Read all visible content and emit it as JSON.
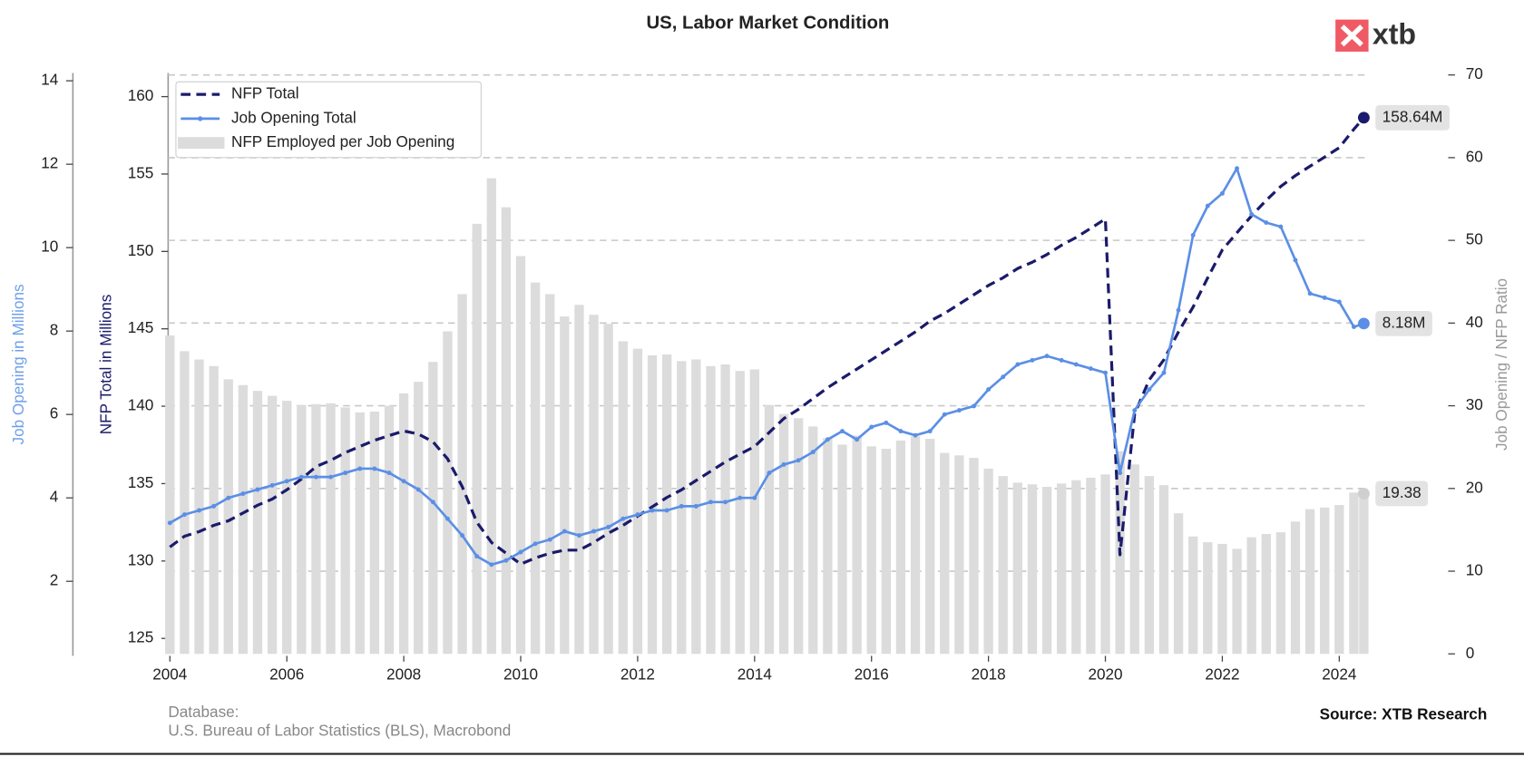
{
  "chart_data": {
    "type": "combo",
    "title": "US, Labor Market Condition",
    "logo": "xtb",
    "ylabel": "NFP Total in Millions",
    "y2label": "Job Opening / NFP Ratio",
    "y3label": "Job Opening in Millions",
    "footer": {
      "database": "Database:",
      "sources": "U.S. Bureau of Labor Statistics (BLS), Macrobond",
      "credit": "Source: XTB Research"
    },
    "xlim": [
      2003.97,
      2024.5
    ],
    "xticks": [
      2004,
      2006,
      2008,
      2010,
      2012,
      2014,
      2016,
      2018,
      2020,
      2022,
      2024
    ],
    "ylim": [
      124.0,
      161.4
    ],
    "yticks": [
      125,
      130,
      135,
      140,
      145,
      150,
      155,
      160
    ],
    "y2lim": [
      0,
      70
    ],
    "y2ticks": [
      0,
      10,
      20,
      30,
      40,
      50,
      60,
      70
    ],
    "y3lim": [
      0.26,
      14.14
    ],
    "y3ticks": [
      2,
      4,
      6,
      8,
      10,
      12,
      14
    ],
    "grid": true,
    "legend": "upper left",
    "x": [
      2004,
      2004.25,
      2004.5,
      2004.75,
      2005,
      2005.25,
      2005.5,
      2005.75,
      2006,
      2006.25,
      2006.5,
      2006.75,
      2007,
      2007.25,
      2007.5,
      2007.75,
      2008,
      2008.25,
      2008.5,
      2008.75,
      2009,
      2009.25,
      2009.5,
      2009.75,
      2010,
      2010.25,
      2010.5,
      2010.75,
      2011,
      2011.25,
      2011.5,
      2011.75,
      2012,
      2012.25,
      2012.5,
      2012.75,
      2013,
      2013.25,
      2013.5,
      2013.75,
      2014,
      2014.25,
      2014.5,
      2014.75,
      2015,
      2015.25,
      2015.5,
      2015.75,
      2016,
      2016.25,
      2016.5,
      2016.75,
      2017,
      2017.25,
      2017.5,
      2017.75,
      2018,
      2018.25,
      2018.5,
      2018.75,
      2019,
      2019.25,
      2019.5,
      2019.75,
      2020,
      2020.25,
      2020.5,
      2020.75,
      2021,
      2021.25,
      2021.5,
      2021.75,
      2022,
      2022.25,
      2022.5,
      2022.75,
      2023,
      2023.25,
      2023.5,
      2023.75,
      2024,
      2024.25,
      2024.42
    ],
    "series": [
      {
        "name": "NFP Total",
        "type": "line",
        "axis": "y",
        "color": "#1b1b6b",
        "dashed": true,
        "value_label": "158.64M",
        "values": [
          130.9,
          131.6,
          131.9,
          132.3,
          132.6,
          133.1,
          133.6,
          134.0,
          134.6,
          135.3,
          136.1,
          136.5,
          137.0,
          137.4,
          137.8,
          138.1,
          138.4,
          138.2,
          137.7,
          136.6,
          134.8,
          132.5,
          131.2,
          130.5,
          129.8,
          130.2,
          130.5,
          130.7,
          130.7,
          131.2,
          131.8,
          132.3,
          132.9,
          133.5,
          134.1,
          134.6,
          135.2,
          135.8,
          136.4,
          136.9,
          137.4,
          138.3,
          139.2,
          139.8,
          140.5,
          141.2,
          141.8,
          142.4,
          143.0,
          143.6,
          144.2,
          144.8,
          145.5,
          146.0,
          146.6,
          147.2,
          147.8,
          148.3,
          148.9,
          149.3,
          149.8,
          150.4,
          150.9,
          151.5,
          152.1,
          130.4,
          139.5,
          141.7,
          143.0,
          144.8,
          146.4,
          148.3,
          150.1,
          151.2,
          152.3,
          153.3,
          154.2,
          154.9,
          155.5,
          156.1,
          156.7,
          157.9,
          158.64
        ]
      },
      {
        "name": "Job Opening Total",
        "type": "line",
        "axis": "y3",
        "color": "#5b8fe6",
        "markers": true,
        "value_label": "8.18M",
        "values": [
          3.4,
          3.6,
          3.7,
          3.8,
          4.0,
          4.1,
          4.2,
          4.3,
          4.4,
          4.5,
          4.5,
          4.5,
          4.6,
          4.7,
          4.7,
          4.6,
          4.4,
          4.2,
          3.9,
          3.5,
          3.1,
          2.6,
          2.4,
          2.5,
          2.7,
          2.9,
          3.0,
          3.2,
          3.1,
          3.2,
          3.3,
          3.5,
          3.6,
          3.7,
          3.7,
          3.8,
          3.8,
          3.9,
          3.9,
          4.0,
          4.0,
          4.6,
          4.8,
          4.9,
          5.1,
          5.4,
          5.6,
          5.4,
          5.7,
          5.8,
          5.6,
          5.5,
          5.6,
          6.0,
          6.1,
          6.2,
          6.6,
          6.9,
          7.2,
          7.3,
          7.4,
          7.3,
          7.2,
          7.1,
          7.0,
          4.6,
          6.1,
          6.6,
          7.0,
          8.5,
          10.3,
          11.0,
          11.3,
          11.9,
          10.8,
          10.6,
          10.5,
          9.7,
          8.9,
          8.8,
          8.7,
          8.1,
          8.18
        ]
      },
      {
        "name": "NFP Employed per Job Opening",
        "type": "bar",
        "axis": "y2",
        "color": "#dcdcdc",
        "value_label": "19.38",
        "values": [
          38.5,
          36.6,
          35.6,
          34.8,
          33.2,
          32.5,
          31.8,
          31.2,
          30.6,
          30.1,
          30.2,
          30.3,
          29.8,
          29.2,
          29.3,
          30.0,
          31.5,
          32.9,
          35.3,
          39.0,
          43.5,
          52.0,
          57.5,
          54.0,
          48.1,
          44.9,
          43.5,
          40.8,
          42.2,
          41.0,
          39.9,
          37.8,
          36.9,
          36.1,
          36.2,
          35.4,
          35.6,
          34.8,
          35.0,
          34.2,
          34.4,
          30.1,
          29.0,
          28.5,
          27.5,
          26.1,
          25.3,
          26.4,
          25.1,
          24.8,
          25.8,
          26.3,
          26.0,
          24.3,
          24.0,
          23.7,
          22.4,
          21.5,
          20.7,
          20.5,
          20.2,
          20.6,
          21.0,
          21.3,
          21.7,
          24.5,
          22.9,
          21.5,
          20.4,
          17.0,
          14.2,
          13.5,
          13.3,
          12.7,
          14.1,
          14.5,
          14.7,
          16.0,
          17.5,
          17.7,
          18.0,
          19.5,
          19.38
        ]
      }
    ]
  }
}
